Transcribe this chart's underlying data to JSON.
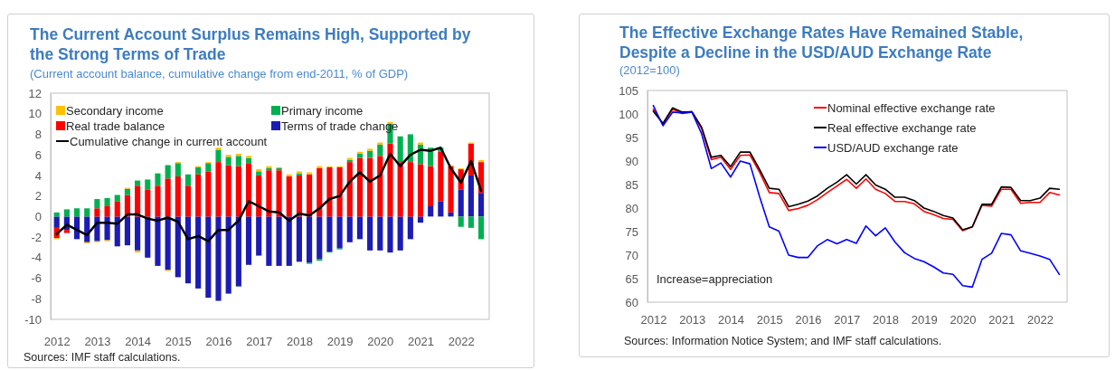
{
  "chart_data": [
    {
      "type": "bar",
      "stacked": true,
      "title": "The Current Account Surplus Remains High, Supported by the Strong Terms of Trade",
      "subtitle": "(Current account balance, cumulative change from end-2011, % of GDP)",
      "x": [
        2012,
        2012.25,
        2012.5,
        2012.75,
        2013,
        2013.25,
        2013.5,
        2013.75,
        2014,
        2014.25,
        2014.5,
        2014.75,
        2015,
        2015.25,
        2015.5,
        2015.75,
        2016,
        2016.25,
        2016.5,
        2016.75,
        2017,
        2017.25,
        2017.5,
        2017.75,
        2018,
        2018.25,
        2018.5,
        2018.75,
        2019,
        2019.25,
        2019.5,
        2019.75,
        2020,
        2020.25,
        2020.5,
        2020.75,
        2021,
        2021.25,
        2021.5,
        2021.75,
        2022,
        2022.25,
        2022.5
      ],
      "xlim": [
        2011.85,
        2022.7
      ],
      "xticks": [
        2012,
        2013,
        2014,
        2015,
        2016,
        2017,
        2018,
        2019,
        2020,
        2021,
        2022
      ],
      "ylim": [
        -10,
        12
      ],
      "yticks": [
        -10,
        -8,
        -6,
        -4,
        -2,
        0,
        2,
        4,
        6,
        8,
        10,
        12
      ],
      "legend": "top",
      "series": [
        {
          "name": "Terms of trade change",
          "type": "bar",
          "color": "#1c1cb4",
          "values": [
            -1.1,
            -1.3,
            -2.2,
            -2.5,
            -2.4,
            -2.3,
            -2.9,
            -2.8,
            -3.3,
            -4.0,
            -4.8,
            -5.2,
            -5.9,
            -6.5,
            -7.0,
            -7.9,
            -8.2,
            -7.5,
            -6.8,
            -4.7,
            -3.8,
            -4.8,
            -4.8,
            -4.8,
            -4.4,
            -4.5,
            -4.1,
            -3.4,
            -3.1,
            -2.5,
            -2.2,
            -3.3,
            -3.3,
            -3.5,
            -3.3,
            -2.2,
            -0.6,
            1.0,
            1.5,
            0.4,
            2.6,
            4.0,
            2.3
          ]
        },
        {
          "name": "Real trade balance",
          "type": "bar",
          "color": "#ff0000",
          "values": [
            -1.0,
            -0.3,
            0.0,
            0.0,
            0.8,
            1.0,
            1.5,
            2.1,
            3.0,
            2.6,
            3.0,
            3.7,
            3.9,
            3.0,
            4.1,
            4.4,
            5.3,
            5.0,
            4.9,
            5.2,
            4.0,
            4.5,
            4.5,
            3.9,
            4.0,
            4.1,
            4.7,
            4.8,
            4.8,
            5.3,
            5.7,
            5.7,
            5.9,
            7.1,
            5.3,
            5.3,
            5.1,
            3.9,
            4.8,
            4.5,
            2.0,
            3.1,
            3.0
          ]
        },
        {
          "name": "Primary income",
          "type": "bar",
          "color": "#00b050",
          "values": [
            0.4,
            0.7,
            0.8,
            0.8,
            0.9,
            0.8,
            0.6,
            0.6,
            0.5,
            1.0,
            1.2,
            1.3,
            1.3,
            1.1,
            0.7,
            0.8,
            1.2,
            0.8,
            1.0,
            0.5,
            0.4,
            0.2,
            0.2,
            0.0,
            0.2,
            -0.1,
            -0.2,
            -0.1,
            -0.1,
            0.2,
            0.4,
            0.7,
            1.1,
            1.9,
            2.5,
            2.7,
            1.9,
            1.8,
            0.4,
            0.0,
            -1.0,
            -1.1,
            -2.2
          ]
        },
        {
          "name": "Secondary income",
          "type": "bar",
          "color": "#ffc000",
          "values": [
            -0.1,
            0.0,
            0.0,
            -0.1,
            -0.1,
            -0.1,
            0.0,
            0.1,
            -0.2,
            0.0,
            0.0,
            -0.1,
            0.1,
            0.0,
            0.1,
            0.1,
            0.2,
            0.2,
            0.2,
            0.2,
            0.2,
            0.2,
            0.1,
            0.2,
            0.2,
            0.2,
            0.2,
            0.1,
            0.1,
            0.2,
            0.2,
            0.2,
            0.2,
            0.2,
            0.0,
            0.0,
            0.2,
            0.0,
            null,
            0.1,
            0.1,
            0.1,
            0.2
          ]
        },
        {
          "name": "Cumulative change in current account",
          "type": "line",
          "color": "#000000",
          "values": [
            -1.7,
            -0.8,
            -1.3,
            -1.8,
            -0.6,
            -0.6,
            -0.7,
            0.2,
            0.2,
            -0.2,
            -0.4,
            -0.1,
            -0.5,
            -2.2,
            -1.9,
            -2.4,
            -1.3,
            -1.3,
            -0.4,
            1.5,
            1.0,
            0.5,
            0.4,
            -0.4,
            0.3,
            0.1,
            0.8,
            1.7,
            2.0,
            3.4,
            4.3,
            3.4,
            4.0,
            6.1,
            4.9,
            6.0,
            6.5,
            6.4,
            6.7,
            4.7,
            3.3,
            5.4,
            2.5
          ]
        }
      ],
      "annotations": [
        "Sources: IMF staff calculations."
      ]
    },
    {
      "type": "line",
      "title": "The Effective Exchange Rates Have Remained Stable, Despite a Decline in the USD/AUD Exchange Rate",
      "subtitle": "(2012=100)",
      "x": [
        2012,
        2012.25,
        2012.5,
        2012.75,
        2013,
        2013.25,
        2013.5,
        2013.75,
        2014,
        2014.25,
        2014.5,
        2014.75,
        2015,
        2015.25,
        2015.5,
        2015.75,
        2016,
        2016.25,
        2016.5,
        2016.75,
        2017,
        2017.25,
        2017.5,
        2017.75,
        2018,
        2018.25,
        2018.5,
        2018.75,
        2019,
        2019.25,
        2019.5,
        2019.75,
        2020,
        2020.25,
        2020.5,
        2020.75,
        2021,
        2021.25,
        2021.5,
        2021.75,
        2022,
        2022.25,
        2022.5
      ],
      "xlim": [
        2011.85,
        2022.7
      ],
      "xticks": [
        2012,
        2013,
        2014,
        2015,
        2016,
        2017,
        2018,
        2019,
        2020,
        2021,
        2022
      ],
      "ylim": [
        60,
        105
      ],
      "yticks": [
        60,
        65,
        70,
        75,
        80,
        85,
        90,
        95,
        100,
        105
      ],
      "legend": "top right",
      "series": [
        {
          "name": "Nominal effective exchange rate",
          "color": "#ff0000",
          "values": [
            101.0,
            97.9,
            101.0,
            100.1,
            100.4,
            96.9,
            90.3,
            90.8,
            88.2,
            91.2,
            91.3,
            87.6,
            83.3,
            83.1,
            79.5,
            79.9,
            80.6,
            81.8,
            83.3,
            84.7,
            86.1,
            84.2,
            86.2,
            84.0,
            83.1,
            81.4,
            81.4,
            80.9,
            79.3,
            78.6,
            77.8,
            77.6,
            75.2,
            76.0,
            80.6,
            80.4,
            84.0,
            84.0,
            81.0,
            81.2,
            81.2,
            83.3,
            82.8
          ]
        },
        {
          "name": "Real effective exchange rate",
          "color": "#000000",
          "values": [
            100.6,
            98.0,
            101.3,
            100.4,
            100.5,
            97.2,
            90.8,
            91.2,
            88.8,
            91.9,
            91.9,
            88.2,
            84.2,
            84.0,
            80.3,
            80.8,
            81.5,
            82.6,
            84.2,
            85.5,
            87.1,
            85.1,
            87.1,
            84.9,
            84.0,
            82.3,
            82.3,
            81.6,
            80.0,
            79.3,
            78.4,
            77.9,
            75.4,
            76.0,
            80.8,
            80.8,
            84.5,
            84.4,
            81.6,
            81.6,
            82.1,
            84.2,
            84.0
          ]
        },
        {
          "name": "USD/AUD exchange rate",
          "color": "#0000ff",
          "values": [
            101.8,
            97.5,
            100.4,
            100.2,
            100.4,
            95.8,
            88.4,
            89.6,
            86.6,
            90.0,
            89.4,
            82.4,
            76.0,
            75.1,
            70.0,
            69.5,
            69.5,
            72.0,
            73.3,
            72.4,
            73.3,
            72.5,
            76.2,
            74.1,
            75.8,
            72.8,
            70.5,
            69.3,
            68.6,
            67.5,
            66.2,
            65.9,
            63.5,
            63.2,
            69.1,
            70.4,
            74.6,
            74.3,
            70.9,
            70.4,
            69.8,
            69.1,
            65.9
          ]
        }
      ],
      "annotations": [
        "Increase=appreciation",
        "Sources: Information Notice System; and IMF staff calculations."
      ]
    }
  ]
}
